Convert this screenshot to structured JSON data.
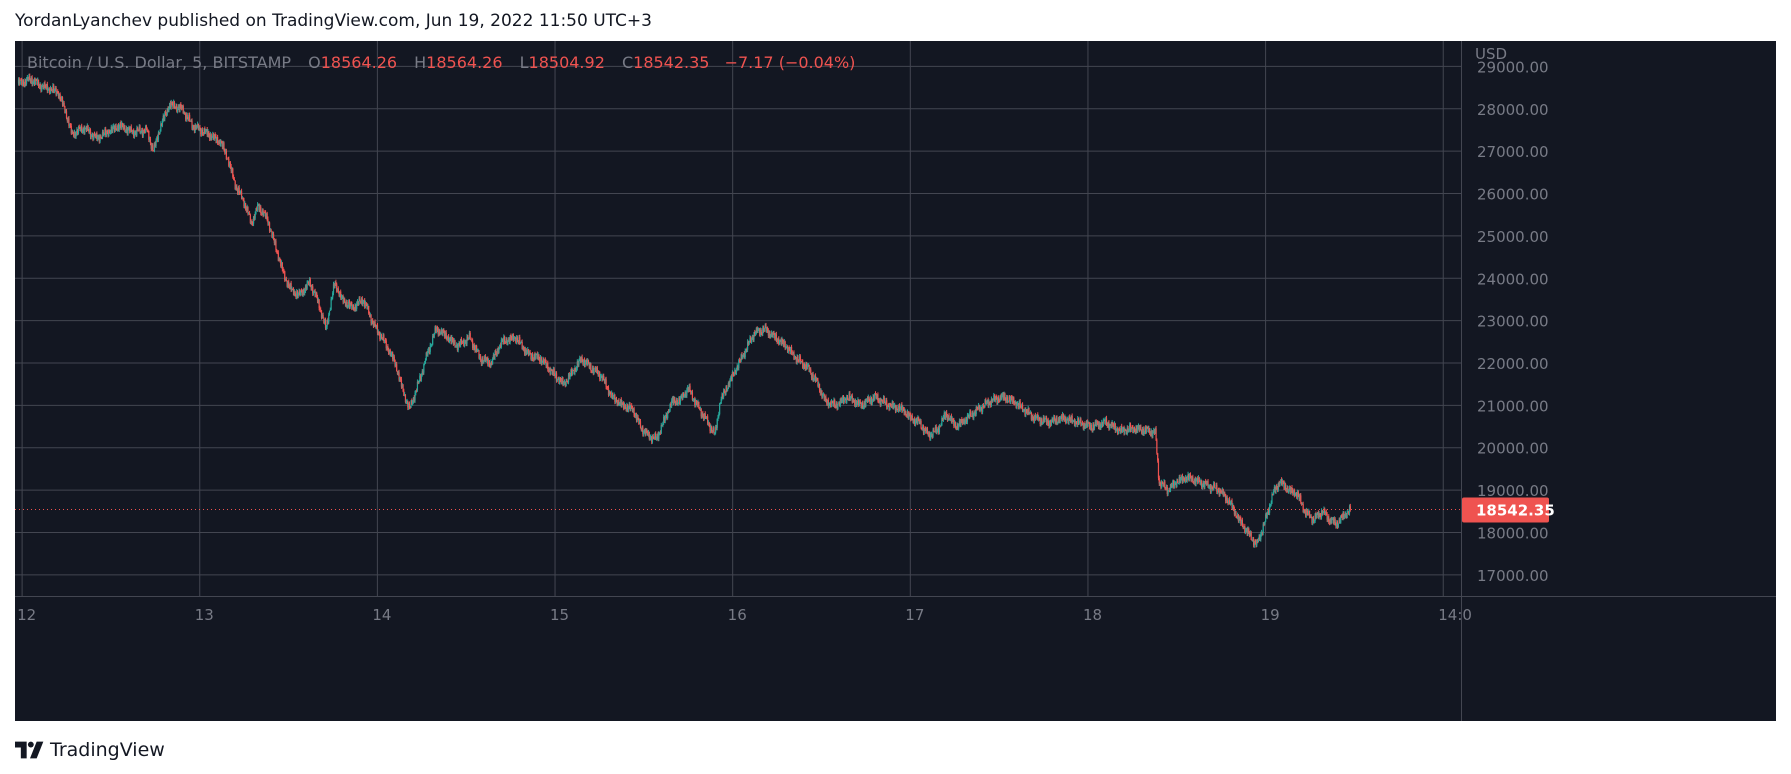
{
  "header": {
    "published_line": "YordanLyanchev published on TradingView.com, Jun 19, 2022 11:50 UTC+3"
  },
  "footer": {
    "brand": "TradingView"
  },
  "legend": {
    "symbol": "Bitcoin / U.S. Dollar, 5, BITSTAMP",
    "o_label": "O",
    "o_value": "18564.26",
    "h_label": "H",
    "h_value": "18564.26",
    "l_label": "L",
    "l_value": "18504.92",
    "c_label": "C",
    "c_value": "18542.35",
    "change": "−7.17 (−0.04%)"
  },
  "colors": {
    "background": "#131722",
    "grid": "#434651",
    "text": "#787b86",
    "up": "#26a69a",
    "down": "#ef5350"
  },
  "chart_data": {
    "type": "candlestick",
    "currency_label": "USD",
    "last_price": "18542.35",
    "ylim": [
      16500,
      29600
    ],
    "y_ticks": [
      17000,
      18000,
      19000,
      20000,
      21000,
      22000,
      23000,
      24000,
      25000,
      26000,
      27000,
      28000,
      29000
    ],
    "y_tick_labels": [
      "17000.00",
      "18000.00",
      "19000.00",
      "20000.00",
      "21000.00",
      "22000.00",
      "23000.00",
      "24000.00",
      "25000.00",
      "26000.00",
      "27000.00",
      "28000.00",
      "29000.00"
    ],
    "x_ticks": [
      12,
      13,
      14,
      15,
      16,
      17,
      18,
      19,
      20
    ],
    "x_tick_labels": [
      "12",
      "13",
      "14",
      "15",
      "16",
      "17",
      "18",
      "19",
      "14:0"
    ],
    "xlim": [
      11.96,
      20.1
    ],
    "last_bar_day": 19.48,
    "grid": true,
    "price_path": [
      [
        11.98,
        28600
      ],
      [
        12.05,
        28700
      ],
      [
        12.1,
        28550
      ],
      [
        12.2,
        28400
      ],
      [
        12.24,
        28000
      ],
      [
        12.28,
        27400
      ],
      [
        12.35,
        27550
      ],
      [
        12.42,
        27300
      ],
      [
        12.48,
        27450
      ],
      [
        12.55,
        27600
      ],
      [
        12.62,
        27450
      ],
      [
        12.7,
        27500
      ],
      [
        12.74,
        27000
      ],
      [
        12.78,
        27600
      ],
      [
        12.83,
        28100
      ],
      [
        12.9,
        28000
      ],
      [
        12.96,
        27600
      ],
      [
        13.05,
        27400
      ],
      [
        13.12,
        27200
      ],
      [
        13.16,
        26800
      ],
      [
        13.2,
        26200
      ],
      [
        13.25,
        25800
      ],
      [
        13.29,
        25300
      ],
      [
        13.33,
        25700
      ],
      [
        13.38,
        25400
      ],
      [
        13.43,
        24700
      ],
      [
        13.48,
        24000
      ],
      [
        13.52,
        23700
      ],
      [
        13.56,
        23600
      ],
      [
        13.62,
        23900
      ],
      [
        13.67,
        23400
      ],
      [
        13.71,
        22800
      ],
      [
        13.76,
        23900
      ],
      [
        13.8,
        23500
      ],
      [
        13.86,
        23300
      ],
      [
        13.92,
        23500
      ],
      [
        13.98,
        22900
      ],
      [
        14.04,
        22500
      ],
      [
        14.1,
        22000
      ],
      [
        14.14,
        21400
      ],
      [
        14.18,
        20900
      ],
      [
        14.23,
        21500
      ],
      [
        14.28,
        22200
      ],
      [
        14.33,
        22800
      ],
      [
        14.37,
        22700
      ],
      [
        14.45,
        22400
      ],
      [
        14.52,
        22600
      ],
      [
        14.58,
        22100
      ],
      [
        14.64,
        22000
      ],
      [
        14.7,
        22500
      ],
      [
        14.78,
        22600
      ],
      [
        14.85,
        22200
      ],
      [
        14.92,
        22100
      ],
      [
        15.0,
        21700
      ],
      [
        15.05,
        21500
      ],
      [
        15.1,
        21800
      ],
      [
        15.15,
        22100
      ],
      [
        15.2,
        21900
      ],
      [
        15.26,
        21700
      ],
      [
        15.32,
        21200
      ],
      [
        15.38,
        21000
      ],
      [
        15.44,
        20900
      ],
      [
        15.48,
        20500
      ],
      [
        15.52,
        20300
      ],
      [
        15.57,
        20200
      ],
      [
        15.62,
        20700
      ],
      [
        15.66,
        21100
      ],
      [
        15.7,
        21100
      ],
      [
        15.75,
        21400
      ],
      [
        15.8,
        21000
      ],
      [
        15.86,
        20600
      ],
      [
        15.9,
        20300
      ],
      [
        15.93,
        21100
      ],
      [
        16.0,
        21700
      ],
      [
        16.06,
        22200
      ],
      [
        16.12,
        22700
      ],
      [
        16.18,
        22800
      ],
      [
        16.24,
        22600
      ],
      [
        16.3,
        22400
      ],
      [
        16.36,
        22100
      ],
      [
        16.42,
        21900
      ],
      [
        16.48,
        21500
      ],
      [
        16.52,
        21100
      ],
      [
        16.58,
        21000
      ],
      [
        16.65,
        21200
      ],
      [
        16.72,
        21000
      ],
      [
        16.8,
        21200
      ],
      [
        16.88,
        21000
      ],
      [
        16.96,
        20900
      ],
      [
        17.0,
        20700
      ],
      [
        17.05,
        20600
      ],
      [
        17.1,
        20300
      ],
      [
        17.15,
        20400
      ],
      [
        17.2,
        20800
      ],
      [
        17.26,
        20500
      ],
      [
        17.32,
        20700
      ],
      [
        17.38,
        20900
      ],
      [
        17.45,
        21100
      ],
      [
        17.52,
        21200
      ],
      [
        17.58,
        21100
      ],
      [
        17.64,
        20900
      ],
      [
        17.7,
        20700
      ],
      [
        17.78,
        20600
      ],
      [
        17.86,
        20700
      ],
      [
        17.94,
        20600
      ],
      [
        18.02,
        20500
      ],
      [
        18.1,
        20600
      ],
      [
        18.18,
        20400
      ],
      [
        18.26,
        20450
      ],
      [
        18.34,
        20400
      ],
      [
        18.38,
        20350
      ],
      [
        18.4,
        19200
      ],
      [
        18.45,
        19000
      ],
      [
        18.5,
        19200
      ],
      [
        18.56,
        19300
      ],
      [
        18.62,
        19200
      ],
      [
        18.68,
        19100
      ],
      [
        18.74,
        19000
      ],
      [
        18.8,
        18700
      ],
      [
        18.85,
        18300
      ],
      [
        18.9,
        18000
      ],
      [
        18.95,
        17700
      ],
      [
        19.0,
        18300
      ],
      [
        19.04,
        18900
      ],
      [
        19.08,
        19200
      ],
      [
        19.13,
        19000
      ],
      [
        19.18,
        18900
      ],
      [
        19.22,
        18500
      ],
      [
        19.27,
        18300
      ],
      [
        19.32,
        18500
      ],
      [
        19.36,
        18300
      ],
      [
        19.4,
        18200
      ],
      [
        19.44,
        18400
      ],
      [
        19.48,
        18540
      ]
    ]
  }
}
